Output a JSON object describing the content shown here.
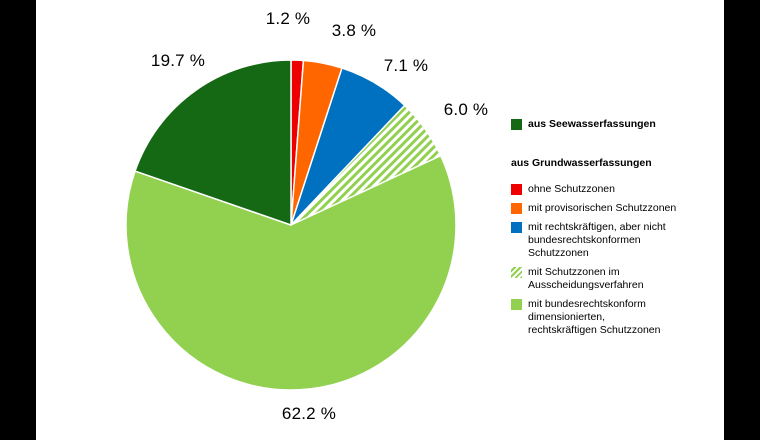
{
  "chart_data": {
    "type": "pie",
    "title": "",
    "unit": "%",
    "start_angle_deg": 0,
    "direction": "clockwise",
    "legend_position": "right",
    "slices": [
      {
        "id": "ohne-schutzzonen",
        "group": "aus Grundwasserfassungen",
        "label": "ohne Schutzzonen",
        "value": 1.2,
        "display": "1.2 %",
        "color": "#ee0000",
        "pattern": "solid"
      },
      {
        "id": "mit-provisorischen-schutzzonen",
        "group": "aus Grundwasserfassungen",
        "label": "mit provisorischen Schutzzonen",
        "value": 3.8,
        "display": "3.8 %",
        "color": "#ff6600",
        "pattern": "solid"
      },
      {
        "id": "mit-rechtskraeftigen-nicht-bundesrechtskonformen-schutzzonen",
        "group": "aus Grundwasserfassungen",
        "label": "mit rechtskräftigen, aber nicht bundesrechtskonformen Schutzzonen",
        "value": 7.1,
        "display": "7.1 %",
        "color": "#0070c0",
        "pattern": "solid"
      },
      {
        "id": "mit-schutzzonen-im-ausscheidungsverfahren",
        "group": "aus Grundwasserfassungen",
        "label": "mit Schutzzonen im Ausscheidungsverfahren",
        "value": 6.0,
        "display": "6.0 %",
        "color": "#92d050",
        "pattern": "hatch"
      },
      {
        "id": "mit-bundesrechtskonform-dimensionierten-schutzzonen",
        "group": "aus Grundwasserfassungen",
        "label": "mit bundesrechtskonform dimensionierten, rechtskräftigen Schutzzonen",
        "value": 62.2,
        "display": "62.2 %",
        "color": "#92d050",
        "pattern": "solid"
      },
      {
        "id": "aus-seewasserfassungen",
        "group": "aus Seewasserfassungen",
        "label": "aus Seewasserfassungen",
        "value": 19.7,
        "display": "19.7 %",
        "color": "#156915",
        "pattern": "solid"
      }
    ]
  },
  "legend": {
    "seewasser": {
      "label": "aus Seewasserfassungen",
      "color": "#156915"
    },
    "grundwasser_header": "aus Grundwasserfassungen",
    "items": [
      {
        "label": "ohne Schutzzonen",
        "color": "#ee0000",
        "pattern": "solid"
      },
      {
        "label": "mit provisorischen Schutzzonen",
        "color": "#ff6600",
        "pattern": "solid"
      },
      {
        "label": "mit rechtskräftigen, aber nicht\nbundesrechtskonformen\nSchutzzonen",
        "color": "#0070c0",
        "pattern": "solid"
      },
      {
        "label": "mit Schutzzonen im\nAusscheidungsverfahren",
        "color": "#92d050",
        "pattern": "hatch"
      },
      {
        "label": "mit bundesrechtskonform dimensionierten,\nrechtskräftigen Schutzzonen",
        "color": "#92d050",
        "pattern": "solid"
      }
    ]
  }
}
